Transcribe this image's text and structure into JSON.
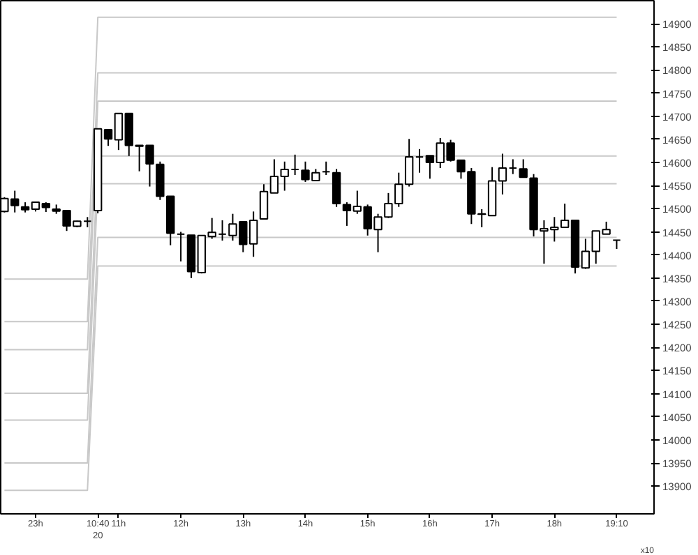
{
  "chart_data": {
    "type": "candlestick",
    "categories": [
      null,
      null,
      null,
      "23h",
      null,
      null,
      null,
      null,
      null,
      "10:40\n20",
      null,
      "11h",
      null,
      null,
      null,
      null,
      null,
      "12h",
      null,
      null,
      null,
      null,
      null,
      "13h",
      null,
      null,
      null,
      null,
      null,
      "14h",
      null,
      null,
      null,
      null,
      null,
      "15h",
      null,
      null,
      null,
      null,
      null,
      "16h",
      null,
      null,
      null,
      null,
      null,
      "17h",
      null,
      null,
      null,
      null,
      null,
      "18h",
      null,
      null,
      null,
      null,
      null,
      "19:10"
    ],
    "ohlc": [
      [
        14494,
        14525,
        14492,
        14522
      ],
      [
        14521,
        14539,
        14492,
        14507
      ],
      [
        14504,
        14514,
        14492,
        14498
      ],
      [
        14499,
        14514,
        14494,
        14514
      ],
      [
        14511,
        14514,
        14493,
        14503
      ],
      [
        14499,
        14509,
        14489,
        14495
      ],
      [
        14496,
        14496,
        14452,
        14463
      ],
      [
        14462,
        14474,
        14460,
        14473
      ],
      [
        14473,
        14482,
        14460,
        14473
      ],
      [
        14496,
        14673,
        14490,
        14673
      ],
      [
        14671,
        14671,
        14636,
        14651
      ],
      [
        14649,
        14706,
        14627,
        14706
      ],
      [
        14706,
        14706,
        14614,
        14637
      ],
      [
        14637,
        14637,
        14581,
        14635
      ],
      [
        14637,
        14637,
        14548,
        14597
      ],
      [
        14596,
        14602,
        14519,
        14527
      ],
      [
        14527,
        14527,
        14421,
        14447
      ],
      [
        14445,
        14450,
        14386,
        14445
      ],
      [
        14443,
        14443,
        14350,
        14364
      ],
      [
        14362,
        14442,
        14360,
        14442
      ],
      [
        14440,
        14480,
        14435,
        14449
      ],
      [
        14445,
        14475,
        14431,
        14445
      ],
      [
        14442,
        14489,
        14431,
        14467
      ],
      [
        14472,
        14472,
        14406,
        14423
      ],
      [
        14424,
        14494,
        14396,
        14475
      ],
      [
        14478,
        14553,
        14477,
        14537
      ],
      [
        14534,
        14607,
        14534,
        14570
      ],
      [
        14570,
        14602,
        14539,
        14585
      ],
      [
        14585,
        14617,
        14573,
        14585
      ],
      [
        14583,
        14602,
        14558,
        14563
      ],
      [
        14561,
        14586,
        14561,
        14578
      ],
      [
        14580,
        14602,
        14573,
        14580
      ],
      [
        14578,
        14586,
        14504,
        14511
      ],
      [
        14509,
        14514,
        14463,
        14496
      ],
      [
        14495,
        14539,
        14489,
        14505
      ],
      [
        14504,
        14509,
        14442,
        14457
      ],
      [
        14455,
        14489,
        14406,
        14482
      ],
      [
        14482,
        14534,
        14480,
        14511
      ],
      [
        14511,
        14578,
        14504,
        14553
      ],
      [
        14553,
        14651,
        14548,
        14612
      ],
      [
        14612,
        14629,
        14578,
        14612
      ],
      [
        14615,
        14615,
        14565,
        14600
      ],
      [
        14600,
        14653,
        14588,
        14642
      ],
      [
        14642,
        14649,
        14602,
        14605
      ],
      [
        14605,
        14605,
        14565,
        14580
      ],
      [
        14580,
        14588,
        14467,
        14489
      ],
      [
        14489,
        14499,
        14460,
        14488
      ],
      [
        14485,
        14590,
        14485,
        14560
      ],
      [
        14560,
        14619,
        14531,
        14588
      ],
      [
        14588,
        14607,
        14575,
        14588
      ],
      [
        14586,
        14607,
        14568,
        14568
      ],
      [
        14566,
        14575,
        14440,
        14455
      ],
      [
        14452,
        14475,
        14381,
        14457
      ],
      [
        14455,
        14482,
        14429,
        14460
      ],
      [
        14460,
        14511,
        14460,
        14475
      ],
      [
        14475,
        14475,
        14360,
        14374
      ],
      [
        14372,
        14435,
        14370,
        14408
      ],
      [
        14408,
        14452,
        14381,
        14452
      ],
      [
        14445,
        14472,
        14445,
        14455
      ],
      [
        14432,
        14432,
        14413,
        14432
      ]
    ],
    "colors": [
      "#ffffff",
      "#000000",
      "#000000",
      "#ffffff",
      "#000000",
      "#000000",
      "#000000",
      "#ffffff",
      "#000000",
      "#ffffff",
      "#000000",
      "#ffffff",
      "#000000",
      "#000000",
      "#000000",
      "#000000",
      "#000000",
      "#000000",
      "#000000",
      "#ffffff",
      "#ffffff",
      "#000000",
      "#ffffff",
      "#000000",
      "#ffffff",
      "#ffffff",
      "#ffffff",
      "#ffffff",
      "#000000",
      "#000000",
      "#ffffff",
      "#000000",
      "#000000",
      "#000000",
      "#ffffff",
      "#000000",
      "#ffffff",
      "#ffffff",
      "#ffffff",
      "#ffffff",
      "#000000",
      "#000000",
      "#ffffff",
      "#000000",
      "#000000",
      "#000000",
      "#000000",
      "#ffffff",
      "#ffffff",
      "#000000",
      "#000000",
      "#000000",
      "#ffffff",
      "#ffffff",
      "#ffffff",
      "#000000",
      "#ffffff",
      "#ffffff",
      "#ffffff",
      "#000000"
    ],
    "series": [
      {
        "type": "line",
        "color": "#c8c8c8",
        "values": [
          14348,
          14348,
          14348,
          14348,
          14348,
          14348,
          14348,
          14348,
          14348,
          14914,
          14914,
          14914,
          14914,
          14914,
          14914,
          14914,
          14914,
          14914,
          14914,
          14914,
          14914,
          14914,
          14914,
          14914,
          14914,
          14914,
          14914,
          14914,
          14914,
          14914,
          14914,
          14914,
          14914,
          14914,
          14914,
          14914,
          14914,
          14914,
          14914,
          14914,
          14914,
          14914,
          14914,
          14914,
          14914,
          14914,
          14914,
          14914,
          14914,
          14914,
          14914,
          14914,
          14914,
          14914,
          14914,
          14914,
          14914,
          14914,
          14914,
          14914
        ]
      },
      {
        "type": "line",
        "color": "#c8c8c8",
        "values": [
          14256,
          14256,
          14256,
          14256,
          14256,
          14256,
          14256,
          14256,
          14256,
          14794,
          14794,
          14794,
          14794,
          14794,
          14794,
          14794,
          14794,
          14794,
          14794,
          14794,
          14794,
          14794,
          14794,
          14794,
          14794,
          14794,
          14794,
          14794,
          14794,
          14794,
          14794,
          14794,
          14794,
          14794,
          14794,
          14794,
          14794,
          14794,
          14794,
          14794,
          14794,
          14794,
          14794,
          14794,
          14794,
          14794,
          14794,
          14794,
          14794,
          14794,
          14794,
          14794,
          14794,
          14794,
          14794,
          14794,
          14794,
          14794,
          14794,
          14794
        ]
      },
      {
        "type": "line",
        "color": "#c8c8c8",
        "values": [
          14195,
          14195,
          14195,
          14195,
          14195,
          14195,
          14195,
          14195,
          14195,
          14733,
          14733,
          14733,
          14733,
          14733,
          14733,
          14733,
          14733,
          14733,
          14733,
          14733,
          14733,
          14733,
          14733,
          14733,
          14733,
          14733,
          14733,
          14733,
          14733,
          14733,
          14733,
          14733,
          14733,
          14733,
          14733,
          14733,
          14733,
          14733,
          14733,
          14733,
          14733,
          14733,
          14733,
          14733,
          14733,
          14733,
          14733,
          14733,
          14733,
          14733,
          14733,
          14733,
          14733,
          14733,
          14733,
          14733,
          14733,
          14733,
          14733,
          14733
        ]
      },
      {
        "type": "line",
        "color": "#c8c8c8",
        "values": [
          14101,
          14101,
          14101,
          14101,
          14101,
          14101,
          14101,
          14101,
          14101,
          14614,
          14614,
          14614,
          14614,
          14614,
          14614,
          14614,
          14614,
          14614,
          14614,
          14614,
          14614,
          14614,
          14614,
          14614,
          14614,
          14614,
          14614,
          14614,
          14614,
          14614,
          14614,
          14614,
          14614,
          14614,
          14614,
          14614,
          14614,
          14614,
          14614,
          14614,
          14614,
          14614,
          14614,
          14614,
          14614,
          14614,
          14614,
          14614,
          14614,
          14614,
          14614,
          14614,
          14614,
          14614,
          14614,
          14614,
          14614,
          14614,
          14614,
          14614
        ]
      },
      {
        "type": "line",
        "color": "#c8c8c8",
        "values": [
          14043,
          14043,
          14043,
          14043,
          14043,
          14043,
          14043,
          14043,
          14043,
          14554,
          14554,
          14554,
          14554,
          14554,
          14554,
          14554,
          14554,
          14554,
          14554,
          14554,
          14554,
          14554,
          14554,
          14554,
          14554,
          14554,
          14554,
          14554,
          14554,
          14554,
          14554,
          14554,
          14554,
          14554,
          14554,
          14554,
          14554,
          14554,
          14554,
          14554,
          14554,
          14554,
          14554,
          14554,
          14554,
          14554,
          14554,
          14554,
          14554,
          14554,
          14554,
          14554,
          14554,
          14554,
          14554,
          14554,
          14554,
          14554,
          14554,
          14554
        ]
      },
      {
        "type": "line",
        "color": "#c8c8c8",
        "values": [
          13950,
          13950,
          13950,
          13950,
          13950,
          13950,
          13950,
          13950,
          13950,
          14438,
          14438,
          14438,
          14438,
          14438,
          14438,
          14438,
          14438,
          14438,
          14438,
          14438,
          14438,
          14438,
          14438,
          14438,
          14438,
          14438,
          14438,
          14438,
          14438,
          14438,
          14438,
          14438,
          14438,
          14438,
          14438,
          14438,
          14438,
          14438,
          14438,
          14438,
          14438,
          14438,
          14438,
          14438,
          14438,
          14438,
          14438,
          14438,
          14438,
          14438,
          14438,
          14438,
          14438,
          14438,
          14438,
          14438,
          14438,
          14438,
          14438,
          14438
        ]
      },
      {
        "type": "line",
        "color": "#c8c8c8",
        "values": [
          13891,
          13891,
          13891,
          13891,
          13891,
          13891,
          13891,
          13891,
          13891,
          14376,
          14376,
          14376,
          14376,
          14376,
          14376,
          14376,
          14376,
          14376,
          14376,
          14376,
          14376,
          14376,
          14376,
          14376,
          14376,
          14376,
          14376,
          14376,
          14376,
          14376,
          14376,
          14376,
          14376,
          14376,
          14376,
          14376,
          14376,
          14376,
          14376,
          14376,
          14376,
          14376,
          14376,
          14376,
          14376,
          14376,
          14376,
          14376,
          14376,
          14376,
          14376,
          14376,
          14376,
          14376,
          14376,
          14376,
          14376,
          14376,
          14376,
          14376
        ]
      }
    ],
    "ylim": [
      13840,
      14950
    ],
    "yticks": [
      13900,
      13950,
      14000,
      14050,
      14100,
      14150,
      14200,
      14250,
      14300,
      14350,
      14400,
      14450,
      14500,
      14550,
      14600,
      14650,
      14700,
      14750,
      14800,
      14850,
      14900
    ],
    "annotations": [
      "x10"
    ],
    "grid": false
  }
}
